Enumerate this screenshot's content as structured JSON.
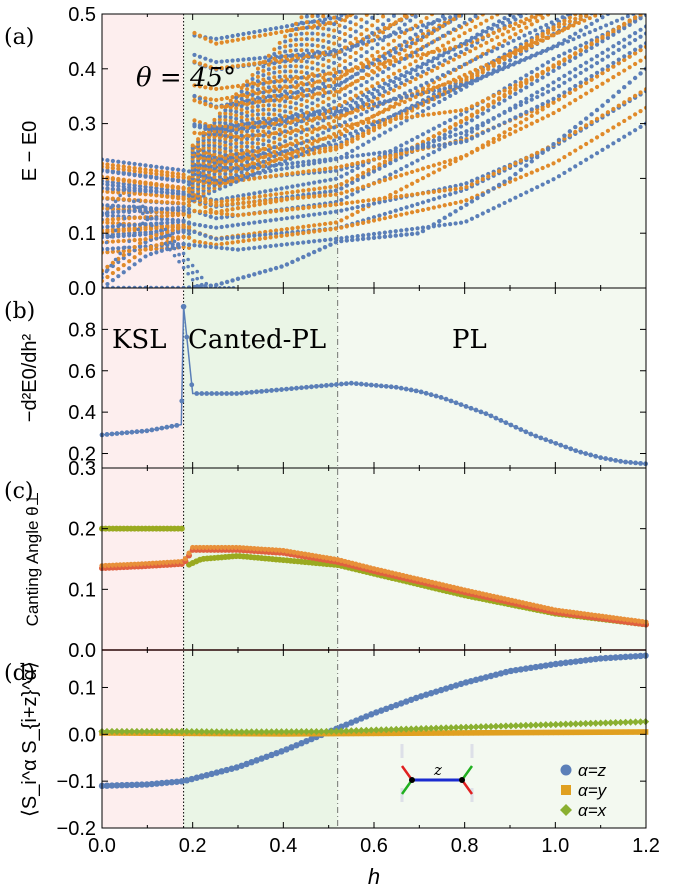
{
  "chart_data": [
    {
      "panel": "(a)",
      "type": "scatter",
      "ylabel": "E − E0",
      "annotation": "θ = 45°",
      "xlim": [
        0.0,
        1.2
      ],
      "ylim": [
        0.0,
        0.5
      ],
      "yticks": [
        "0.0",
        "0.1",
        "0.2",
        "0.3",
        "0.4",
        "0.5"
      ],
      "series_colors": [
        "#5b7fb8",
        "#e08a2a"
      ],
      "lower_branches_peak_h": [
        0.05,
        0.08,
        0.11
      ],
      "lower_branches": [
        {
          "h": [
            0.0,
            0.18,
            0.25,
            0.52,
            0.8,
            1.0,
            1.2
          ],
          "E": [
            0.19,
            0.17,
            0.16,
            0.2,
            0.32,
            0.42,
            0.5
          ]
        },
        {
          "h": [
            0.0,
            0.18,
            0.25,
            0.52,
            0.8,
            1.0,
            1.2
          ],
          "E": [
            0.18,
            0.16,
            0.13,
            0.17,
            0.3,
            0.4,
            0.49
          ]
        },
        {
          "h": [
            0.0,
            0.18,
            0.25,
            0.52,
            0.8,
            1.0,
            1.2
          ],
          "E": [
            0.14,
            0.13,
            0.11,
            0.14,
            0.26,
            0.36,
            0.46
          ]
        },
        {
          "h": [
            0.0,
            0.18,
            0.25,
            0.52,
            0.8,
            1.0,
            1.2
          ],
          "E": [
            0.12,
            0.11,
            0.09,
            0.12,
            0.24,
            0.34,
            0.44
          ]
        },
        {
          "h": [
            0.0,
            0.18,
            0.25,
            0.52,
            0.8,
            1.0,
            1.2
          ],
          "E": [
            0.09,
            0.1,
            0.08,
            0.1,
            0.17,
            0.25,
            0.35
          ]
        },
        {
          "h": [
            0.0,
            0.18,
            0.25,
            0.52,
            0.8,
            1.0,
            1.2
          ],
          "E": [
            0.06,
            0.07,
            0.06,
            0.09,
            0.14,
            0.21,
            0.31
          ]
        },
        {
          "h": [
            0.0,
            0.1,
            0.18,
            0.3,
            0.52,
            0.8,
            1.0,
            1.2
          ],
          "E": [
            0.0,
            0.06,
            0.08,
            0.07,
            0.09,
            0.12,
            0.2,
            0.3
          ]
        }
      ],
      "gap_curve": {
        "h": [
          0.0,
          0.18,
          0.25,
          0.4,
          0.52,
          0.7,
          0.9,
          1.1,
          1.2
        ],
        "E": [
          0.0,
          0.0,
          0.005,
          0.04,
          0.085,
          0.1,
          0.2,
          0.33,
          0.4
        ]
      }
    },
    {
      "panel": "(b)",
      "type": "line",
      "ylabel": "−d²E0/dh²",
      "phase_labels": [
        "KSL",
        "Canted-PL",
        "PL"
      ],
      "ylim": [
        0.13,
        1.0
      ],
      "yticks": [
        "0.2",
        "0.4",
        "0.6",
        "0.8"
      ],
      "series": [
        {
          "name": "",
          "color": "#5b7fb8",
          "h": [
            0.0,
            0.05,
            0.1,
            0.15,
            0.175,
            0.18,
            0.2,
            0.25,
            0.3,
            0.35,
            0.4,
            0.45,
            0.5,
            0.55,
            0.6,
            0.65,
            0.7,
            0.75,
            0.8,
            0.85,
            0.9,
            0.95,
            1.0,
            1.05,
            1.1,
            1.15,
            1.2
          ],
          "y": [
            0.29,
            0.3,
            0.31,
            0.33,
            0.34,
            0.91,
            0.49,
            0.49,
            0.49,
            0.5,
            0.51,
            0.52,
            0.53,
            0.54,
            0.53,
            0.52,
            0.5,
            0.47,
            0.43,
            0.39,
            0.34,
            0.29,
            0.25,
            0.21,
            0.18,
            0.16,
            0.15
          ]
        }
      ]
    },
    {
      "panel": "(c)",
      "type": "scatter",
      "ylabel": "Canting Angle θ⊥",
      "ylim": [
        0.0,
        0.3
      ],
      "yticks": [
        "0.0",
        "0.1",
        "0.2",
        "0.3"
      ],
      "series": [
        {
          "name": "",
          "color": "#9aaa20",
          "h": [
            0.0,
            0.09,
            0.18,
            0.19,
            0.22,
            0.3,
            0.52,
            0.8,
            1.0,
            1.2
          ],
          "y": [
            0.2,
            0.2,
            0.2,
            0.14,
            0.15,
            0.155,
            0.14,
            0.09,
            0.06,
            0.042
          ]
        },
        {
          "name": "",
          "color": "#e06040",
          "h": [
            0.0,
            0.09,
            0.18,
            0.2,
            0.3,
            0.4,
            0.52,
            0.6,
            0.8,
            1.0,
            1.2
          ],
          "y": [
            0.135,
            0.138,
            0.142,
            0.165,
            0.165,
            0.16,
            0.145,
            0.13,
            0.095,
            0.062,
            0.042
          ]
        }
      ]
    },
    {
      "panel": "(d)",
      "type": "scatter",
      "ylabel": "⟨S_i^α S_{i+z}^α⟩",
      "xlabel": "h",
      "xlim": [
        0.0,
        1.2
      ],
      "ylim": [
        -0.2,
        0.18
      ],
      "xticks": [
        "0.0",
        "0.2",
        "0.4",
        "0.6",
        "0.8",
        "1.0",
        "1.2"
      ],
      "yticks": [
        "−0.2",
        "−0.1",
        "0.0",
        "0.1"
      ],
      "inset_label": "z",
      "legend_position": "bottom-right",
      "series": [
        {
          "name": "α=z",
          "color": "#5b7fb8",
          "marker": "circle",
          "h": [
            0.0,
            0.1,
            0.18,
            0.3,
            0.4,
            0.5,
            0.6,
            0.7,
            0.8,
            0.9,
            1.0,
            1.1,
            1.2
          ],
          "y": [
            -0.11,
            -0.107,
            -0.1,
            -0.07,
            -0.035,
            0.005,
            0.045,
            0.08,
            0.11,
            0.135,
            0.15,
            0.162,
            0.168
          ]
        },
        {
          "name": "α=y",
          "color": "#e0a020",
          "marker": "square",
          "h": [
            0.0,
            0.2,
            0.4,
            0.6,
            0.8,
            1.0,
            1.2
          ],
          "y": [
            0.003,
            0.002,
            0.001,
            0.002,
            0.003,
            0.004,
            0.005
          ]
        },
        {
          "name": "α=x",
          "color": "#8ab030",
          "marker": "diamond",
          "h": [
            0.0,
            0.18,
            0.3,
            0.5,
            0.7,
            0.9,
            1.1,
            1.2
          ],
          "y": [
            0.006,
            0.006,
            0.005,
            0.006,
            0.012,
            0.018,
            0.024,
            0.027
          ]
        }
      ]
    }
  ],
  "phase_boundaries": [
    0.18,
    0.52
  ],
  "regions": [
    {
      "name": "KSL",
      "from": 0.0,
      "to": 0.18,
      "color": "#fdeeee"
    },
    {
      "name": "Canted-PL",
      "from": 0.18,
      "to": 0.52,
      "color": "#eaf5e6"
    },
    {
      "name": "PL",
      "from": 0.52,
      "to": 1.2,
      "color": "#f3f9f0"
    }
  ]
}
